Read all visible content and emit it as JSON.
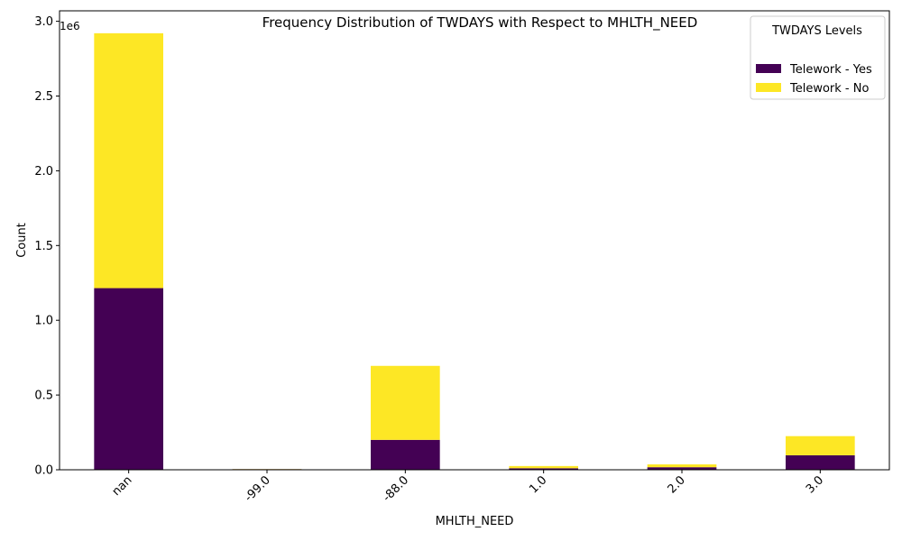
{
  "chart_data": {
    "type": "bar",
    "stacked": true,
    "title": "Frequency Distribution of TWDAYS with Respect to MHLTH_NEED",
    "xlabel": "MHLTH_NEED",
    "ylabel": "Count",
    "y_offset_label": "1e6",
    "categories": [
      "nan",
      "-99.0",
      "-88.0",
      "1.0",
      "2.0",
      "3.0"
    ],
    "series": [
      {
        "name": "Telework - Yes",
        "color": "#440154",
        "values": [
          1215000,
          4000,
          200000,
          10000,
          17000,
          97000
        ]
      },
      {
        "name": "Telework - No",
        "color": "#fde725",
        "values": [
          1705000,
          1000,
          495000,
          15000,
          19000,
          128000
        ]
      }
    ],
    "ylim": [
      0,
      3070000
    ],
    "yticks": [
      0,
      500000,
      1000000,
      1500000,
      2000000,
      2500000,
      3000000
    ],
    "ytick_labels": [
      "0.0",
      "0.5",
      "1.0",
      "1.5",
      "2.0",
      "2.5",
      "3.0"
    ],
    "legend": {
      "title": "TWDAYS Levels",
      "position": "top-right"
    },
    "grid": false
  }
}
